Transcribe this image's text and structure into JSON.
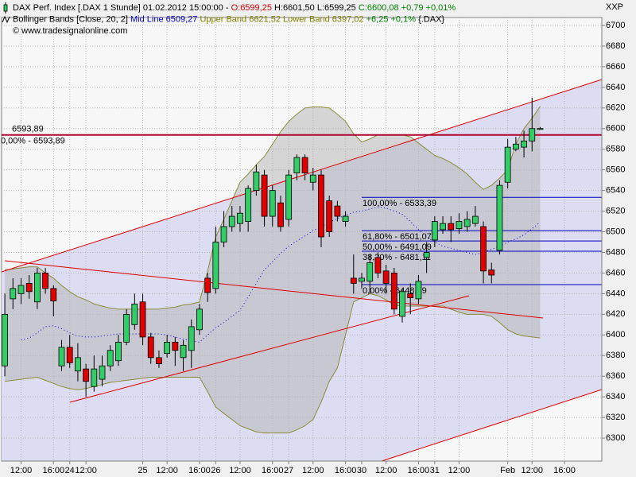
{
  "chart_data": {
    "type": "candlestick",
    "header": [
      [
        {
          "text": "DAX Perf. Index [.DAX 1 Stunde] 01.02.2012 15:00:00 - ",
          "color": "#000000"
        },
        {
          "text": "O:6599,25",
          "color": "#d00000"
        },
        {
          "text": " H:6601,50 L:6599,25 ",
          "color": "#000000"
        },
        {
          "text": "C:6600,08 +0,79 +0,01%",
          "color": "#008000"
        }
      ],
      [
        {
          "text": "Bollinger Bands [Close, 20, 2] ",
          "color": "#000000"
        },
        {
          "text": "Mid Line 6509,27 ",
          "color": "#0000c0"
        },
        {
          "text": "Upper Band 6621,52 Lower Band 6397,02 ",
          "color": "#808000"
        },
        {
          "text": "+6,25 +0,1% ",
          "color": "#008000"
        },
        {
          "text": "{.DAX}",
          "color": "#000000"
        }
      ],
      [
        {
          "text": "© www.tradesignalonline.com",
          "color": "#000000"
        }
      ]
    ],
    "axis_label": "XXP",
    "categories": [
      null,
      null,
      "12:00",
      null,
      null,
      null,
      "16:00",
      null,
      "24",
      null,
      "12:00",
      null,
      null,
      null,
      null,
      null,
      null,
      "25",
      null,
      null,
      "12:00",
      null,
      null,
      null,
      "16:00",
      null,
      "26",
      null,
      null,
      "12:00",
      null,
      null,
      null,
      "16:00",
      null,
      "27",
      null,
      null,
      "12:00",
      null,
      null,
      null,
      "16:00",
      null,
      "30",
      null,
      null,
      "12:00",
      null,
      null,
      null,
      "16:00",
      null,
      "31",
      null,
      null,
      "12:00",
      null,
      null,
      null,
      null,
      null,
      "Feb",
      null,
      null,
      "12:00",
      null,
      null,
      null,
      "16:00",
      null,
      null,
      null,
      null
    ],
    "open": [
      6370,
      6435,
      6440,
      6450,
      6432,
      6460,
      6445,
      6370,
      6388,
      6365,
      6367,
      6350,
      6357,
      6370,
      6375,
      6393,
      6410,
      6432,
      6398,
      6378,
      6382,
      6393,
      6378,
      6385,
      6405,
      6455,
      6445,
      6490,
      6505,
      6508,
      6510,
      6540,
      6555,
      6515,
      6528,
      6512,
      6557,
      6572,
      6548,
      6555,
      6530,
      6525,
      6510,
      6455,
      6452,
      6452,
      6475,
      6462,
      6460,
      6418,
      6440,
      6435,
      6475,
      6492,
      6502,
      6508,
      6503,
      6505,
      6508,
      6505,
      6463,
      6482,
      6548,
      6580,
      6582,
      6588,
      6599.25,
      null,
      null,
      null,
      null,
      null,
      null,
      null
    ],
    "high": [
      6440,
      6455,
      6455,
      6458,
      6465,
      6465,
      6448,
      6395,
      6400,
      6392,
      6372,
      6380,
      6380,
      6390,
      6400,
      6425,
      6440,
      6440,
      6402,
      6385,
      6400,
      6398,
      6395,
      6415,
      6430,
      6460,
      6505,
      6520,
      6525,
      6525,
      6545,
      6565,
      6560,
      6545,
      6535,
      6560,
      6575,
      6575,
      6562,
      6560,
      6535,
      6530,
      6520,
      6478,
      6460,
      6478,
      6480,
      6468,
      6465,
      6445,
      6450,
      6458,
      6490,
      6515,
      6515,
      6515,
      6518,
      6520,
      6525,
      6510,
      6470,
      6550,
      6590,
      6592,
      6598,
      6630,
      6601.5,
      null,
      null,
      null,
      null,
      null,
      null,
      null
    ],
    "low": [
      6360,
      6425,
      6430,
      6435,
      6425,
      6440,
      6418,
      6365,
      6368,
      6355,
      6340,
      6345,
      6350,
      6365,
      6370,
      6390,
      6405,
      6390,
      6372,
      6368,
      6378,
      6370,
      6365,
      6368,
      6400,
      6432,
      6440,
      6485,
      6500,
      6500,
      6500,
      6535,
      6505,
      6505,
      6500,
      6505,
      6550,
      6550,
      6540,
      6485,
      6495,
      6510,
      6505,
      6440,
      6445,
      6440,
      6455,
      6440,
      6420,
      6412,
      6420,
      6430,
      6460,
      6485,
      6498,
      6490,
      6498,
      6500,
      6505,
      6450,
      6450,
      6478,
      6542,
      6578,
      6572,
      6578,
      6599.25,
      null,
      null,
      null,
      null,
      null,
      null,
      null
    ],
    "close": [
      6420,
      6445,
      6448,
      6442,
      6460,
      6445,
      6433,
      6388,
      6373,
      6378,
      6355,
      6367,
      6370,
      6385,
      6393,
      6420,
      6430,
      6398,
      6378,
      6372,
      6393,
      6385,
      6390,
      6408,
      6425,
      6441,
      6490,
      6505,
      6515,
      6518,
      6542,
      6558,
      6515,
      6540,
      6505,
      6555,
      6572,
      6557,
      6555,
      6495,
      6500,
      6515,
      6515,
      6450,
      6455,
      6470,
      6460,
      6450,
      6425,
      6442,
      6436,
      6452,
      6480,
      6510,
      6508,
      6502,
      6510,
      6512,
      6515,
      6462,
      6458,
      6545,
      6582,
      6585,
      6588,
      6600,
      6600.08,
      null,
      null,
      null,
      null,
      null,
      null,
      null
    ],
    "up_color": "#33cc66",
    "down_color": "#e00000",
    "bands": {
      "upper": [
        6463,
        6464,
        6465,
        6466,
        6466,
        6460,
        6455,
        6448,
        6442,
        6437,
        6434,
        6430,
        6428,
        6426,
        6425,
        6425,
        6425,
        6425,
        6425,
        6425,
        6426,
        6427,
        6429,
        6430,
        6432,
        6462,
        6495,
        6512,
        6530,
        6548,
        6556,
        6565,
        6573,
        6585,
        6597,
        6607,
        6614,
        6620,
        6621,
        6621,
        6620,
        6614,
        6607,
        6595,
        6587,
        6590,
        6594,
        6594,
        6594,
        6594,
        6592,
        6586,
        6580,
        6574,
        6571,
        6567,
        6562,
        6556,
        6548,
        6541,
        6545,
        6552,
        6560,
        6585,
        6600,
        6610,
        6621.52,
        null,
        null,
        null,
        null,
        null,
        null,
        null
      ],
      "mid": [
        null,
        null,
        6395,
        6397,
        6402,
        6408,
        6409,
        6406,
        6402,
        6399,
        6398,
        6398,
        6399,
        6400,
        6401,
        6401,
        6401,
        6401,
        6401,
        6401,
        6400,
        6398,
        6396,
        6394,
        6393,
        6400,
        6407,
        6412,
        6418,
        6424,
        6437,
        6450,
        6463,
        6471,
        6479,
        6486,
        6491,
        6496,
        6501,
        6505,
        6509,
        6513,
        6516,
        6519,
        6520,
        6522,
        6524,
        6523,
        6520,
        6517,
        6510,
        6502,
        6495,
        6490,
        6486,
        6484,
        6482,
        6480,
        6478,
        6480,
        6483,
        6486,
        6490,
        6493,
        6497,
        6503,
        6509.27,
        null,
        null,
        null,
        null,
        null,
        null,
        null
      ],
      "lower": [
        6355,
        6356,
        6357,
        6358,
        6359,
        6356,
        6353,
        6350,
        6348,
        6347,
        6348,
        6350,
        6352,
        6354,
        6355,
        6356,
        6357,
        6358,
        6359,
        6359,
        6359,
        6359,
        6359,
        6359,
        6359,
        6345,
        6330,
        6324,
        6318,
        6312,
        6309,
        6306,
        6305,
        6305,
        6305,
        6305,
        6308,
        6312,
        6318,
        6335,
        6355,
        6368,
        6400,
        6432,
        6436,
        6440,
        6438,
        6434,
        6429,
        6428,
        6428,
        6428,
        6428,
        6428,
        6428,
        6425,
        6422,
        6420,
        6420,
        6420,
        6418,
        6412,
        6405,
        6401,
        6399,
        6398,
        6397.02,
        null,
        null,
        null,
        null,
        null,
        null,
        null
      ],
      "line_color": "#8c8c3c",
      "mid_color": "#0000e0",
      "fill": "#b4b4b4"
    },
    "price_line": {
      "value": 6593.89,
      "label": "6593,89",
      "fib_label": "0,00% - 6593,89",
      "color": "#b00030",
      "label_color": "#c00000"
    },
    "fib_color": "#0000c0",
    "fib_levels": [
      {
        "value": 6533.39,
        "label": "100,00% - 6533,39"
      },
      {
        "value": 6501.07,
        "label": "61,80% - 6501,07"
      },
      {
        "value": 6491.09,
        "label": "50,00% - 6491,09"
      },
      {
        "value": 6481.11,
        "label": "38,20% - 6481,11"
      },
      {
        "value": 6448.79,
        "label": "0,00% - 6448,79"
      }
    ],
    "ylim": [
      6277.7,
      6707.7
    ],
    "yticks": [
      6300,
      6320,
      6340,
      6360,
      6380,
      6400,
      6420,
      6440,
      6460,
      6480,
      6500,
      6520,
      6540,
      6560,
      6580,
      6600,
      6620,
      6640,
      6660,
      6680,
      6700
    ],
    "grid": true
  }
}
